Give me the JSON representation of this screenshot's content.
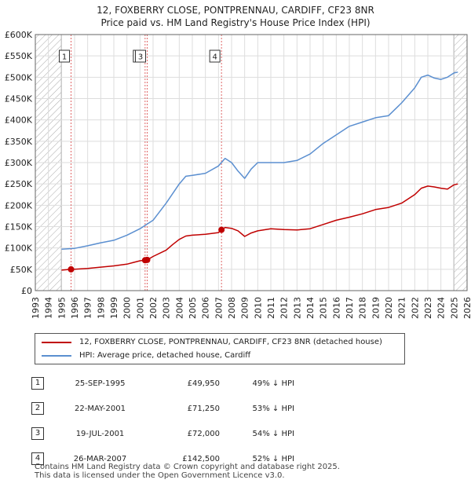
{
  "title_line1": "12, FOXBERRY CLOSE, PONTPRENNAU, CARDIFF, CF23 8NR",
  "title_line2": "Price paid vs. HM Land Registry's House Price Index (HPI)",
  "colors": {
    "property": "#c00000",
    "hpi": "#5b8fd0",
    "marker_line": "#e06666",
    "hatch": "#999999"
  },
  "chart_data": {
    "type": "line",
    "x_range": [
      1993,
      2026
    ],
    "y_range": [
      0,
      600000
    ],
    "y_ticks": [
      0,
      50000,
      100000,
      150000,
      200000,
      250000,
      300000,
      350000,
      400000,
      450000,
      500000,
      550000,
      600000
    ],
    "y_tick_labels": [
      "£0",
      "£50K",
      "£100K",
      "£150K",
      "£200K",
      "£250K",
      "£300K",
      "£350K",
      "£400K",
      "£450K",
      "£500K",
      "£550K",
      "£600K"
    ],
    "x_ticks": [
      1993,
      1994,
      1995,
      1996,
      1997,
      1998,
      1999,
      2000,
      2001,
      2002,
      2003,
      2004,
      2005,
      2006,
      2007,
      2008,
      2009,
      2010,
      2011,
      2012,
      2013,
      2014,
      2015,
      2016,
      2017,
      2018,
      2019,
      2020,
      2021,
      2022,
      2023,
      2024,
      2025,
      2026
    ],
    "hatched_before": 1995.0,
    "hatched_after": 2025.0,
    "series": [
      {
        "name": "property",
        "label": "12, FOXBERRY CLOSE, PONTPRENNAU, CARDIFF, CF23 8NR (detached house)",
        "x": [
          1995.0,
          1995.73,
          1996.0,
          1997.0,
          1998.0,
          1999.0,
          2000.0,
          2000.5,
          2001.0,
          2001.39,
          2001.55,
          2002.0,
          2003.0,
          2003.5,
          2004.0,
          2004.5,
          2005.0,
          2006.0,
          2007.0,
          2007.23,
          2007.5,
          2008.0,
          2008.5,
          2009.0,
          2009.5,
          2010.0,
          2011.0,
          2012.0,
          2013.0,
          2014.0,
          2015.0,
          2016.0,
          2017.0,
          2018.0,
          2019.0,
          2020.0,
          2021.0,
          2022.0,
          2022.5,
          2023.0,
          2023.5,
          2024.0,
          2024.5,
          2025.0,
          2025.3
        ],
        "values": [
          48000,
          49950,
          50000,
          52000,
          55000,
          58000,
          62000,
          66000,
          70000,
          71250,
          72000,
          80000,
          95000,
          108000,
          120000,
          128000,
          130000,
          132000,
          136000,
          142500,
          148000,
          146000,
          140000,
          127000,
          135000,
          140000,
          145000,
          143000,
          142000,
          145000,
          155000,
          165000,
          172000,
          180000,
          190000,
          195000,
          205000,
          225000,
          240000,
          245000,
          243000,
          240000,
          238000,
          248000,
          250000
        ]
      },
      {
        "name": "hpi",
        "label": "HPI: Average price, detached house, Cardiff",
        "x": [
          1995.0,
          1996.0,
          1997.0,
          1998.0,
          1999.0,
          2000.0,
          2001.0,
          2002.0,
          2003.0,
          2004.0,
          2004.5,
          2005.0,
          2006.0,
          2007.0,
          2007.5,
          2008.0,
          2008.5,
          2009.0,
          2009.5,
          2010.0,
          2011.0,
          2012.0,
          2013.0,
          2014.0,
          2015.0,
          2016.0,
          2017.0,
          2018.0,
          2019.0,
          2020.0,
          2021.0,
          2022.0,
          2022.5,
          2023.0,
          2023.5,
          2024.0,
          2024.5,
          2025.0,
          2025.3
        ],
        "values": [
          97000,
          99000,
          105000,
          112000,
          118000,
          130000,
          145000,
          165000,
          205000,
          250000,
          268000,
          270000,
          275000,
          292000,
          310000,
          300000,
          280000,
          263000,
          285000,
          300000,
          300000,
          300000,
          305000,
          320000,
          345000,
          365000,
          385000,
          395000,
          405000,
          410000,
          440000,
          475000,
          500000,
          505000,
          498000,
          495000,
          500000,
          510000,
          512000
        ]
      }
    ],
    "sales": [
      {
        "num": "1",
        "x": 1995.73,
        "value": 49950
      },
      {
        "num": "2",
        "x": 2001.39,
        "value": 71250
      },
      {
        "num": "3",
        "x": 2001.55,
        "value": 72000
      },
      {
        "num": "4",
        "x": 2007.23,
        "value": 142500
      }
    ]
  },
  "legend": {
    "property_label": "12, FOXBERRY CLOSE, PONTPRENNAU, CARDIFF, CF23 8NR (detached house)",
    "hpi_label": "HPI: Average price, detached house, Cardiff"
  },
  "sales_table": [
    {
      "num": "1",
      "date": "25-SEP-1995",
      "price": "£49,950",
      "hpi": "49% ↓ HPI"
    },
    {
      "num": "2",
      "date": "22-MAY-2001",
      "price": "£71,250",
      "hpi": "53% ↓ HPI"
    },
    {
      "num": "3",
      "date": "19-JUL-2001",
      "price": "£72,000",
      "hpi": "54% ↓ HPI"
    },
    {
      "num": "4",
      "date": "26-MAR-2007",
      "price": "£142,500",
      "hpi": "52% ↓ HPI"
    }
  ],
  "footer_line1": "Contains HM Land Registry data © Crown copyright and database right 2025.",
  "footer_line2": "This data is licensed under the Open Government Licence v3.0."
}
